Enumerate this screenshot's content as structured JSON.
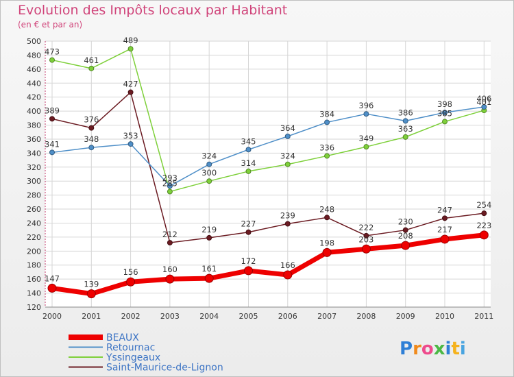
{
  "header": {
    "title": "Evolution des Impôts locaux par Habitant",
    "subtitle": "(en € et par an)"
  },
  "logo": {
    "text": "Proxiti",
    "letter_colors": [
      "#2e7fd6",
      "#f08a1c",
      "#ee4a8c",
      "#4bb844",
      "#2e7fd6",
      "#f5b21c",
      "#49a4e0"
    ]
  },
  "chart_data": {
    "type": "line",
    "x": [
      "2000",
      "2001",
      "2002",
      "2003",
      "2004",
      "2005",
      "2006",
      "2007",
      "2008",
      "2009",
      "2010",
      "2011"
    ],
    "ylim": [
      120,
      500
    ],
    "yticks": [
      120,
      140,
      160,
      180,
      200,
      220,
      240,
      260,
      280,
      300,
      320,
      340,
      360,
      380,
      400,
      420,
      440,
      460,
      480,
      500
    ],
    "grid": true,
    "legend_position": "bottom-left",
    "series": [
      {
        "name": "BEAUX",
        "color": "#ee0000",
        "emphasis": true,
        "values": [
          147,
          139,
          156,
          160,
          161,
          172,
          166,
          198,
          203,
          208,
          217,
          223
        ]
      },
      {
        "name": "Retournac",
        "color": "#4f8fc8",
        "values": [
          341,
          348,
          353,
          293,
          324,
          345,
          364,
          384,
          396,
          386,
          398,
          406
        ]
      },
      {
        "name": "Yssingeaux",
        "color": "#7ed03a",
        "values": [
          473,
          461,
          489,
          285,
          300,
          314,
          324,
          336,
          349,
          363,
          385,
          401
        ]
      },
      {
        "name": "Saint-Maurice-de-Lignon",
        "color": "#6b1b22",
        "values": [
          389,
          376,
          427,
          212,
          219,
          227,
          239,
          248,
          222,
          230,
          247,
          254
        ]
      }
    ]
  }
}
